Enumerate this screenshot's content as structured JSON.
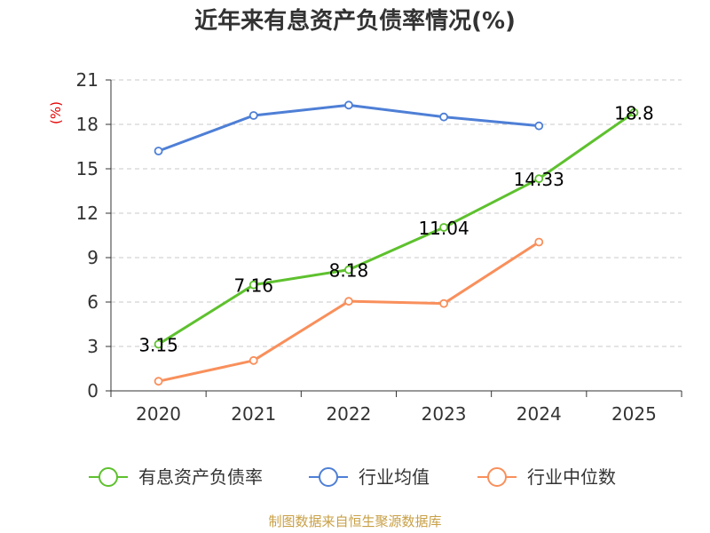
{
  "chart_data": {
    "type": "line",
    "title": "近年来有息资产负债率情况(%)",
    "unit_label": "(%)",
    "categories": [
      "2020",
      "2021",
      "2022",
      "2023",
      "2024",
      "2025"
    ],
    "ylim": [
      0,
      21
    ],
    "yticks": [
      0,
      3,
      6,
      9,
      12,
      15,
      18,
      21
    ],
    "grid": true,
    "legend_position": "bottom",
    "series": [
      {
        "name": "有息资产负债率",
        "color": "#5ec12e",
        "values": [
          3.15,
          7.16,
          8.18,
          11.04,
          14.33,
          18.8
        ],
        "labels": [
          "3.15",
          "7.16",
          "8.18",
          "11.04",
          "14.33",
          "18.8"
        ]
      },
      {
        "name": "行业均值",
        "color": "#4e7fd6",
        "values": [
          16.2,
          18.6,
          19.3,
          18.5,
          17.9,
          null
        ]
      },
      {
        "name": "行业中位数",
        "color": "#f98f5b",
        "values": [
          0.65,
          2.05,
          6.05,
          5.9,
          10.05,
          null
        ]
      }
    ],
    "source": "制图数据来自恒生聚源数据库"
  }
}
